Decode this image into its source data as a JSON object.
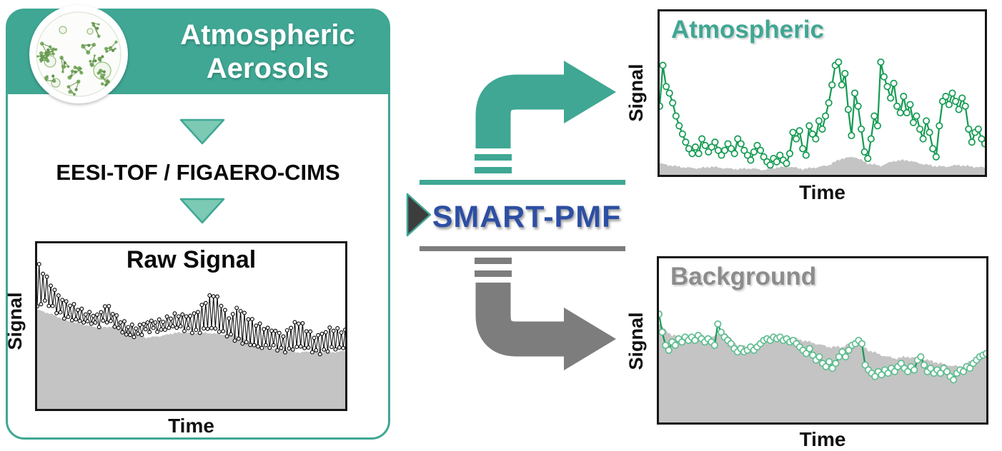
{
  "colors": {
    "teal": "#3FA794",
    "teal_light": "#7CC9B4",
    "blue": "#2D4FA3",
    "gray": "#7D7D7D",
    "dark_triangle": "#3D3D3D",
    "gray_title": "#8C8C8C",
    "gray_area": "#C4C4C4",
    "green": "#149B52",
    "green_marker_bg": "#5FBD8F"
  },
  "left_card": {
    "header": {
      "line1": "Atmospheric",
      "line2": "Aerosols"
    },
    "aerosol_image": "aerosol-particles-image",
    "instrument_label": "EESI-TOF / FIGAERO-CIMS",
    "raw_plot": {
      "title": "Raw Signal",
      "ylabel": "Signal",
      "xlabel": "Time"
    }
  },
  "center": {
    "label": "SMART-PMF",
    "icons": [
      "teal-curved-arrow-icon",
      "play-triangle-icon",
      "gray-curved-arrow-icon"
    ]
  },
  "right": {
    "atmospheric_plot": {
      "title": "Atmospheric",
      "ylabel": "Signal",
      "xlabel": "Time"
    },
    "background_plot": {
      "title": "Background",
      "ylabel": "Signal",
      "xlabel": "Time"
    }
  },
  "chart_data": [
    {
      "id": "raw_signal",
      "type": "line",
      "title": "Raw Signal",
      "xlabel": "Time",
      "ylabel": "Signal",
      "note": "no numeric ticks shown; y values normalized 0-1 of plot height, x spans full axis",
      "x_range": [
        0,
        1
      ],
      "series": [
        {
          "name": "raw signal lower envelope",
          "values": [
            0.62,
            0.64,
            0.61,
            0.58,
            0.55,
            0.53,
            0.52,
            0.53,
            0.51,
            0.53,
            0.5,
            0.47,
            0.45,
            0.44,
            0.46,
            0.48,
            0.48,
            0.49,
            0.49,
            0.48,
            0.48,
            0.47,
            0.48,
            0.48,
            0.47,
            0.45,
            0.41,
            0.39,
            0.39,
            0.38,
            0.38,
            0.36,
            0.35,
            0.37,
            0.38,
            0.36,
            0.34,
            0.35,
            0.37,
            0.36,
            0.36
          ]
        },
        {
          "name": "raw signal upper envelope",
          "values": [
            0.88,
            0.8,
            0.73,
            0.68,
            0.64,
            0.61,
            0.58,
            0.58,
            0.57,
            0.63,
            0.56,
            0.53,
            0.51,
            0.49,
            0.51,
            0.53,
            0.54,
            0.55,
            0.56,
            0.56,
            0.57,
            0.6,
            0.65,
            0.69,
            0.63,
            0.55,
            0.61,
            0.56,
            0.53,
            0.51,
            0.48,
            0.46,
            0.44,
            0.51,
            0.53,
            0.47,
            0.43,
            0.46,
            0.49,
            0.47,
            0.46
          ]
        },
        {
          "name": "background gray area top",
          "values": [
            0.6,
            0.57,
            0.53,
            0.51,
            0.49,
            0.5,
            0.47,
            0.43,
            0.44,
            0.46,
            0.46,
            0.46,
            0.45,
            0.44,
            0.4,
            0.37,
            0.36,
            0.34,
            0.35,
            0.34,
            0.35
          ]
        }
      ]
    },
    {
      "id": "atmospheric",
      "type": "line",
      "title": "Atmospheric",
      "xlabel": "Time",
      "ylabel": "Signal",
      "note": "no numeric ticks shown; y values normalized 0-1 of plot height",
      "x_range": [
        0,
        1
      ],
      "series": [
        {
          "name": "atmospheric factor time series",
          "values": [
            0.42,
            0.67,
            0.54,
            0.5,
            0.44,
            0.36,
            0.3,
            0.25,
            0.2,
            0.16,
            0.13,
            0.17,
            0.13,
            0.22,
            0.18,
            0.14,
            0.17,
            0.2,
            0.15,
            0.12,
            0.15,
            0.19,
            0.16,
            0.13,
            0.22,
            0.19,
            0.15,
            0.12,
            0.09,
            0.14,
            0.18,
            0.15,
            0.11,
            0.08,
            0.06,
            0.1,
            0.08,
            0.12,
            0.09,
            0.07,
            0.13,
            0.26,
            0.22,
            0.27,
            0.16,
            0.12,
            0.3,
            0.25,
            0.22,
            0.33,
            0.28,
            0.36,
            0.44,
            0.55,
            0.67,
            0.69,
            0.55,
            0.62,
            0.4,
            0.24,
            0.5,
            0.42,
            0.28,
            0.14,
            0.1,
            0.22,
            0.36,
            0.3,
            0.69,
            0.6,
            0.54,
            0.47,
            0.56,
            0.42,
            0.38,
            0.48,
            0.38,
            0.43,
            0.32,
            0.36,
            0.28,
            0.22,
            0.33,
            0.26,
            0.16,
            0.11,
            0.3,
            0.45,
            0.48,
            0.43,
            0.5,
            0.45,
            0.4,
            0.47,
            0.42,
            0.28,
            0.2,
            0.26,
            0.28,
            0.22,
            0.19
          ]
        },
        {
          "name": "residual gray area top",
          "values": [
            0.07,
            0.055,
            0.045,
            0.04,
            0.05,
            0.04,
            0.035,
            0.04,
            0.03,
            0.045,
            0.05,
            0.035,
            0.045,
            0.06,
            0.1,
            0.11,
            0.07,
            0.055,
            0.085,
            0.09,
            0.07,
            0.055,
            0.05,
            0.06,
            0.05,
            0.045
          ]
        }
      ]
    },
    {
      "id": "background",
      "type": "line",
      "title": "Background",
      "xlabel": "Time",
      "ylabel": "Signal",
      "note": "no numeric ticks shown; y values normalized 0-1 of plot height",
      "x_range": [
        0,
        1
      ],
      "series": [
        {
          "name": "background factor time series",
          "values": [
            0.66,
            0.55,
            0.47,
            0.44,
            0.49,
            0.47,
            0.51,
            0.49,
            0.52,
            0.5,
            0.52,
            0.5,
            0.53,
            0.51,
            0.49,
            0.51,
            0.49,
            0.47,
            0.6,
            0.55,
            0.52,
            0.5,
            0.48,
            0.45,
            0.43,
            0.45,
            0.43,
            0.44,
            0.46,
            0.44,
            0.46,
            0.48,
            0.5,
            0.51,
            0.5,
            0.52,
            0.51,
            0.52,
            0.5,
            0.51,
            0.49,
            0.5,
            0.48,
            0.46,
            0.44,
            0.42,
            0.45,
            0.41,
            0.38,
            0.4,
            0.36,
            0.34,
            0.37,
            0.33,
            0.36,
            0.4,
            0.43,
            0.4,
            0.44,
            0.47,
            0.48,
            0.5,
            0.48,
            0.35,
            0.32,
            0.3,
            0.28,
            0.31,
            0.29,
            0.32,
            0.3,
            0.33,
            0.31,
            0.34,
            0.36,
            0.33,
            0.31,
            0.34,
            0.32,
            0.38,
            0.4,
            0.35,
            0.31,
            0.33,
            0.3,
            0.32,
            0.3,
            0.33,
            0.31,
            0.28,
            0.26,
            0.3,
            0.32,
            0.31,
            0.34,
            0.33,
            0.36,
            0.38,
            0.4,
            0.41,
            0.42
          ]
        },
        {
          "name": "background gray area top",
          "values": [
            0.6,
            0.53,
            0.52,
            0.53,
            0.52,
            0.55,
            0.47,
            0.46,
            0.48,
            0.51,
            0.52,
            0.5,
            0.48,
            0.46,
            0.46,
            0.5,
            0.44,
            0.41,
            0.39,
            0.4,
            0.39,
            0.37,
            0.35,
            0.34,
            0.38,
            0.43
          ]
        }
      ]
    }
  ]
}
